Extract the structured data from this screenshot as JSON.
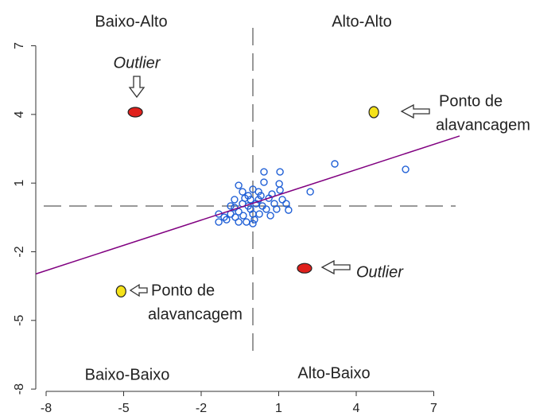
{
  "chart_data": {
    "type": "scatter",
    "xlim": [
      -8.4,
      8
    ],
    "ylim": [
      -8.1,
      9
    ],
    "xticks": [
      -8,
      -5,
      -2,
      1,
      4,
      7
    ],
    "yticks": [
      -8,
      -5,
      -2,
      1,
      4,
      7
    ],
    "reference_lines": {
      "x": 0,
      "y": 0
    },
    "series": [
      {
        "color": "#1f5fd6",
        "marker": "hollow",
        "x": [
          -0.55,
          0,
          0.43,
          0.43,
          1.05,
          1.02,
          1.05,
          1.29,
          1.38,
          2.22,
          3.17,
          5.91,
          -1.32,
          -1.32,
          -1.02,
          -0.86,
          -0.71,
          -0.55,
          -0.4,
          -0.31,
          -0.18,
          -0.09,
          0,
          0.06,
          0.12,
          0.22,
          0.31,
          0.37,
          0.52,
          0.62,
          0.68,
          0.83,
          0.92,
          1.14,
          -0.55,
          -0.25,
          0,
          -0.71,
          -0.4,
          0.22,
          -0.86,
          -1.11,
          -0.18,
          0.25,
          -0.09,
          0.74,
          -0.37,
          -0.68
        ],
        "values": [
          0.9,
          0.73,
          1.49,
          1.04,
          1.49,
          0.97,
          0.69,
          0.1,
          -0.18,
          0.62,
          1.84,
          1.6,
          -0.35,
          -0.7,
          -0.6,
          -0.35,
          -0.07,
          -0.25,
          0.1,
          0.34,
          0,
          -0.14,
          -0.35,
          -0.6,
          0.1,
          0.28,
          0.45,
          0,
          -0.14,
          0.34,
          -0.42,
          0.1,
          -0.14,
          0.28,
          -0.7,
          -0.7,
          -0.77,
          0.28,
          0.62,
          0.62,
          0,
          -0.49,
          0.45,
          -0.35,
          0.28,
          0.52,
          -0.42,
          -0.49
        ]
      },
      {
        "color": "#e0201c",
        "marker": "filled",
        "x": [
          -4.55,
          2.0
        ],
        "values": [
          4.1,
          -2.72
        ]
      },
      {
        "color": "#f5e21a",
        "marker": "filled",
        "x": [
          4.68,
          -5.1
        ],
        "values": [
          4.1,
          -3.73
        ]
      },
      {
        "color": "#800080",
        "marker": "line",
        "x": [
          -8.4,
          8
        ],
        "values": [
          -2.97,
          3.06
        ]
      }
    ],
    "annotations": [
      {
        "lines": [
          "Baixo-Alto"
        ]
      },
      {
        "lines": [
          "Alto-Alto"
        ]
      },
      {
        "lines": [
          "Baixo-Baixo"
        ]
      },
      {
        "lines": [
          "Alto-Baixo"
        ]
      },
      {
        "lines": [
          "Outlier"
        ],
        "italic": true
      },
      {
        "lines": [
          "Ponto de",
          "alavancagem"
        ]
      },
      {
        "lines": [
          "Outlier"
        ],
        "italic": true
      },
      {
        "lines": [
          "Ponto de",
          "alavancagem"
        ]
      }
    ]
  }
}
